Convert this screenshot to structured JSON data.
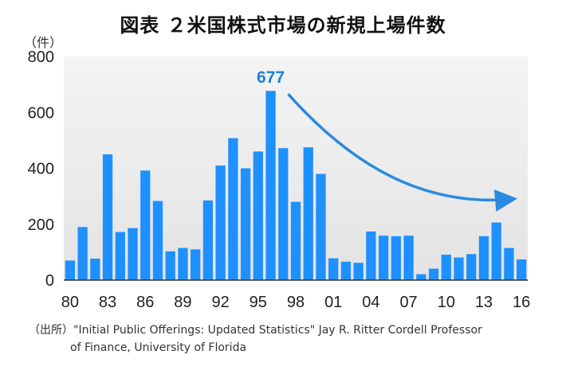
{
  "title": "図表 ２米国株式市場の新規上場件数",
  "unit_label": "（件）",
  "source_line1": "（出所）\"Initial Public Offerings: Updated Statistics\" Jay R. Ritter Cordell Professor",
  "source_line2": "of Finance, University of Florida",
  "colors": {
    "bar": "#1e90ff",
    "plot_bg": "#e9e9e9",
    "arrow": "#2a8ae0"
  },
  "chart_data": {
    "type": "bar",
    "title": "図表 ２米国株式市場の新規上場件数",
    "ylabel": "（件）",
    "xlabel": "",
    "ylim": [
      0,
      800
    ],
    "yticks": [
      "0",
      "200",
      "400",
      "600",
      "800"
    ],
    "x": [
      1980,
      1981,
      1982,
      1983,
      1984,
      1985,
      1986,
      1987,
      1988,
      1989,
      1990,
      1991,
      1992,
      1993,
      1994,
      1995,
      1996,
      1997,
      1998,
      1999,
      2000,
      2001,
      2002,
      2003,
      2004,
      2005,
      2006,
      2007,
      2008,
      2009,
      2010,
      2011,
      2012,
      2013,
      2014,
      2015,
      2016
    ],
    "xtick_labels": [
      "80",
      "83",
      "86",
      "89",
      "92",
      "95",
      "98",
      "01",
      "04",
      "07",
      "10",
      "13",
      "16"
    ],
    "xtick_years": [
      1980,
      1983,
      1986,
      1989,
      1992,
      1995,
      1998,
      2001,
      2004,
      2007,
      2010,
      2013,
      2016
    ],
    "values": [
      70,
      190,
      77,
      450,
      172,
      186,
      392,
      283,
      103,
      115,
      110,
      285,
      410,
      508,
      400,
      460,
      677,
      472,
      280,
      475,
      380,
      78,
      66,
      62,
      174,
      159,
      157,
      159,
      21,
      41,
      91,
      81,
      93,
      157,
      206,
      115,
      74
    ],
    "annotation": {
      "text": "677",
      "year": 1996,
      "value": 677
    },
    "grid": false,
    "legend": "none"
  }
}
